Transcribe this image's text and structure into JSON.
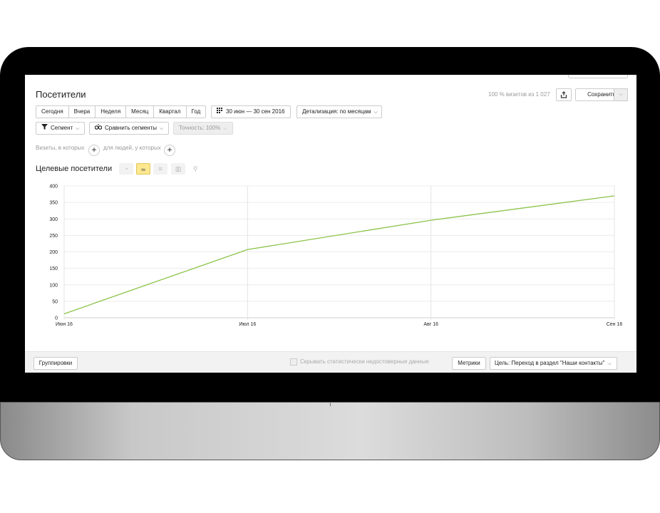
{
  "header": {
    "title": "Посетители",
    "visits_info": "100 % визитов из 1 027",
    "save_label": "Сохранить"
  },
  "periods": [
    "Сегодня",
    "Вчера",
    "Неделя",
    "Месяц",
    "Квартал",
    "Год"
  ],
  "date_range": "30 июн — 30 сен 2016",
  "detail": "Детализация: по месяцам",
  "segment": "Сегмент",
  "compare": "Сравнить сегменты",
  "accuracy": "Точность: 100%",
  "filters": {
    "visits_label": "Визиты, в которых",
    "people_label": "для людей, у которых"
  },
  "chart_title": "Целевые посетители",
  "view_types": [
    "pie-icon",
    "line-icon",
    "stacked-icon",
    "bar-icon",
    "map-pin-icon"
  ],
  "chart_data": {
    "type": "line",
    "x": [
      "Июн 16",
      "Июл 16",
      "Авг 16",
      "Сен 16"
    ],
    "series": [
      {
        "values": [
          12,
          207,
          296,
          370
        ],
        "color": "#8bc34a"
      }
    ],
    "yticks": [
      "0",
      "50",
      "100",
      "150",
      "200",
      "250",
      "300",
      "350",
      "400"
    ],
    "ylim": [
      0,
      400
    ],
    "grid": true
  },
  "bottom": {
    "grouping_label": "Группировки",
    "hide_unreliable_label": "Скрывать статистически недостоверные данные",
    "metrics_label": "Метрики",
    "goal_label": "Цель: Переход в раздел \"Наши контакты\""
  }
}
